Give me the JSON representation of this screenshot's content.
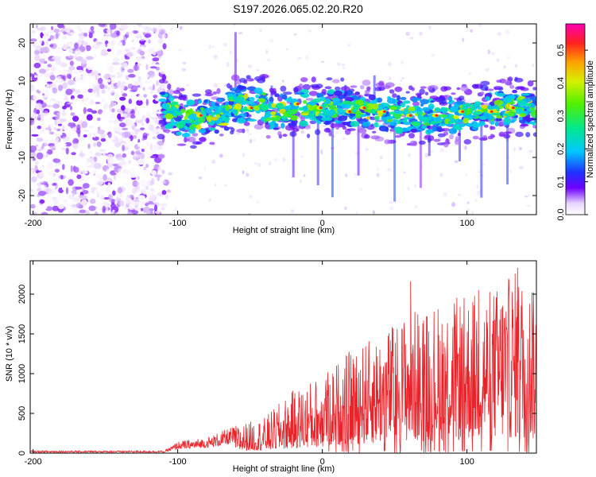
{
  "title": "S197.2026.065.02.20.R20",
  "chart_data": [
    {
      "type": "heatmap",
      "name": "spectrogram",
      "xlabel": "Height of straight line (km)",
      "ylabel": "Frequency (Hz)",
      "xlim": [
        -202,
        148
      ],
      "ylim": [
        -25,
        25
      ],
      "xticks": [
        -200,
        -100,
        0,
        100
      ],
      "yticks": [
        -20,
        -10,
        0,
        10,
        20
      ],
      "colorbar": {
        "label": "Normalized spectral amplitude",
        "range": [
          0,
          0.58
        ],
        "ticks": [
          0.0,
          0.1,
          0.2,
          0.3,
          0.4,
          0.5
        ]
      },
      "description_regions": [
        {
          "x_range": [
            -202,
            -112
          ],
          "y_range": [
            -25,
            25
          ],
          "amplitude_range": [
            0.0,
            0.08
          ],
          "character": "broadband noise"
        },
        {
          "x_range": [
            -112,
            148
          ],
          "y_center": 2,
          "y_halfwidth": 4,
          "amplitude_range": [
            0.05,
            0.58
          ],
          "character": "narrow signal band near 0-5 Hz"
        }
      ]
    },
    {
      "type": "line",
      "name": "snr",
      "xlabel": "Height of straight line (km)",
      "ylabel": "SNR (10 * v/v)",
      "xlim": [
        -202,
        148
      ],
      "ylim": [
        0,
        2420
      ],
      "xticks": [
        -200,
        -100,
        0,
        100
      ],
      "yticks": [
        0,
        500,
        1000,
        1500,
        2000
      ],
      "color": "#e8232a",
      "envelope": [
        {
          "x": -200,
          "y": 20
        },
        {
          "x": -110,
          "y": 20
        },
        {
          "x": -100,
          "y": 150
        },
        {
          "x": -80,
          "y": 200
        },
        {
          "x": -60,
          "y": 350
        },
        {
          "x": -40,
          "y": 450
        },
        {
          "x": -20,
          "y": 800
        },
        {
          "x": 0,
          "y": 1000
        },
        {
          "x": 20,
          "y": 1300
        },
        {
          "x": 40,
          "y": 1500
        },
        {
          "x": 60,
          "y": 1800
        },
        {
          "x": 80,
          "y": 1900
        },
        {
          "x": 100,
          "y": 2000
        },
        {
          "x": 120,
          "y": 2100
        },
        {
          "x": 135,
          "y": 2330
        },
        {
          "x": 148,
          "y": 2000
        }
      ],
      "peaks": [
        {
          "x": 61,
          "y": 2160
        },
        {
          "x": 108,
          "y": 2050
        },
        {
          "x": 135,
          "y": 2330
        },
        {
          "x": 145,
          "y": 2020
        }
      ]
    }
  ]
}
